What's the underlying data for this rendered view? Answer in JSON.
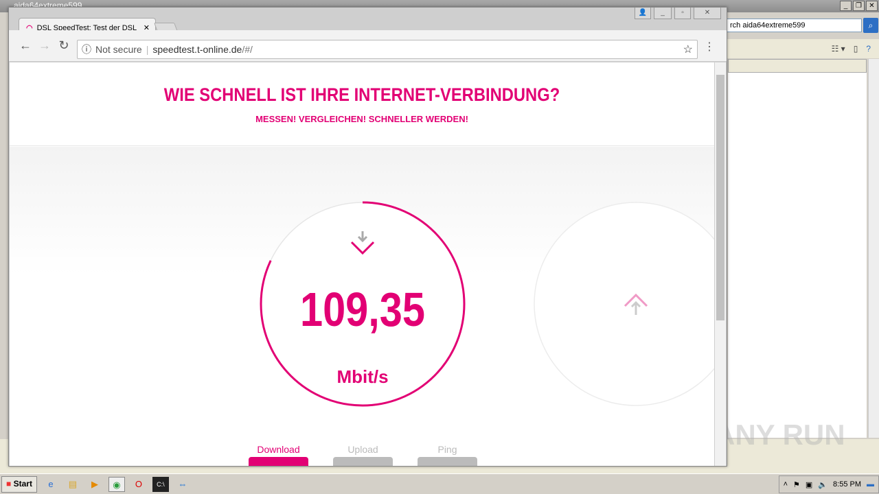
{
  "background_window": {
    "title": "aida64extreme599",
    "search_value": "rch aida64extreme599"
  },
  "browser": {
    "tab_title": "DSL SpeedTest: Test der DSL",
    "security_label": "Not secure",
    "url_host": "speedtest.t-online.de",
    "url_path": "/#/"
  },
  "page": {
    "title": "WIE SCHNELL IST IHRE INTERNET-VERBINDUNG?",
    "subtitle": "MESSEN! VERGLEICHEN! SCHNELLER WERDEN!",
    "speed_value": "109,35",
    "speed_unit": "Mbit/s",
    "download_progress": 0.82,
    "tabs": [
      {
        "label": "Download",
        "active": true
      },
      {
        "label": "Upload",
        "active": false
      },
      {
        "label": "Ping",
        "active": false
      }
    ],
    "accent": "#e20074"
  },
  "taskbar": {
    "start_label": "Start",
    "clock": "8:55 PM"
  },
  "watermark": "ANY RUN"
}
